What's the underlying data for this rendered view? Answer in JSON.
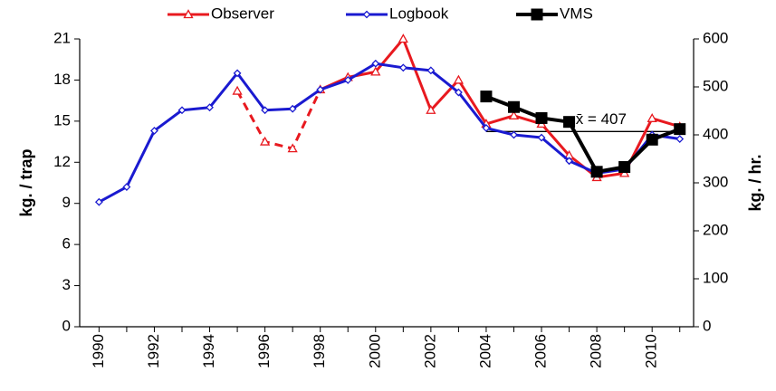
{
  "chart_data": {
    "type": "line",
    "y_label": "kg. / trap",
    "y2_label": "kg. / hr.",
    "x": [
      1990,
      1991,
      1992,
      1993,
      1994,
      1995,
      1996,
      1997,
      1998,
      1999,
      2000,
      2001,
      2002,
      2003,
      2004,
      2005,
      2006,
      2007,
      2008,
      2009,
      2010,
      2011
    ],
    "xlim": [
      1989.3,
      2011.5
    ],
    "xticks": [
      1990,
      1992,
      1994,
      1996,
      1998,
      2000,
      2002,
      2004,
      2006,
      2008,
      2010
    ],
    "ylim": [
      0,
      21
    ],
    "yticks": [
      0,
      3,
      6,
      9,
      12,
      15,
      18,
      21
    ],
    "y2lim": [
      0,
      600
    ],
    "y2ticks": [
      0,
      100,
      200,
      300,
      400,
      500,
      600
    ],
    "legend": "top",
    "series": [
      {
        "name": "Observer",
        "color": "#e8191f",
        "marker": "triangle",
        "dashed_x_range": [
          1995,
          1998
        ],
        "values": [
          null,
          null,
          null,
          null,
          null,
          17.2,
          13.5,
          13.0,
          17.3,
          18.2,
          18.6,
          21.0,
          15.8,
          18.0,
          14.8,
          15.4,
          14.8,
          12.5,
          10.9,
          11.2,
          15.2,
          14.6
        ]
      },
      {
        "name": "Logbook",
        "color": "#1a1ad0",
        "marker": "diamond",
        "values": [
          9.1,
          10.2,
          14.3,
          15.8,
          16.0,
          18.5,
          15.8,
          15.9,
          17.3,
          18.0,
          19.2,
          18.9,
          18.7,
          17.1,
          14.5,
          14.0,
          13.8,
          12.1,
          11.2,
          11.5,
          14.0,
          13.7
        ]
      },
      {
        "name": "VMS",
        "color": "#000000",
        "marker": "square",
        "axis": "y2",
        "values": [
          null,
          null,
          null,
          null,
          null,
          null,
          null,
          null,
          null,
          null,
          null,
          null,
          null,
          null,
          480,
          458,
          435,
          427,
          323,
          333,
          390,
          412
        ]
      }
    ],
    "mean_line": {
      "value": 407,
      "label": "x̄ = 407",
      "axis": "y2",
      "x": [
        2004,
        2011
      ],
      "color": "#000000"
    }
  }
}
